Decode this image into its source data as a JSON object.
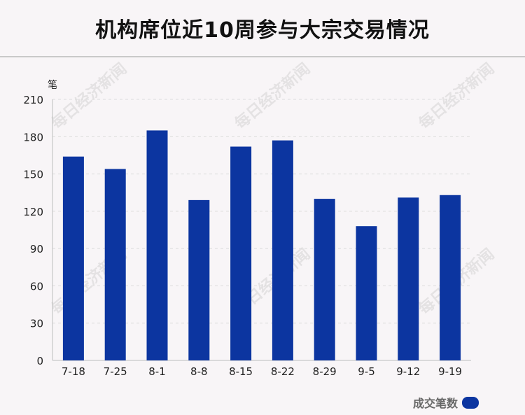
{
  "title": "机构席位近10周参与大宗交易情况",
  "watermark_text": "每日经济新闻",
  "chart_data": {
    "type": "bar",
    "unit_label": "笔",
    "categories": [
      "7-18",
      "7-25",
      "8-1",
      "8-8",
      "8-15",
      "8-22",
      "8-29",
      "9-5",
      "9-12",
      "9-19"
    ],
    "series": [
      {
        "name": "成交笔数",
        "values": [
          164,
          154,
          185,
          129,
          172,
          177,
          130,
          108,
          131,
          133
        ],
        "color": "#0c35a0"
      }
    ],
    "yticks": [
      0,
      30,
      60,
      90,
      120,
      150,
      180,
      210
    ],
    "ylim": [
      0,
      210
    ],
    "grid": true,
    "legend_position": "bottom-right"
  }
}
